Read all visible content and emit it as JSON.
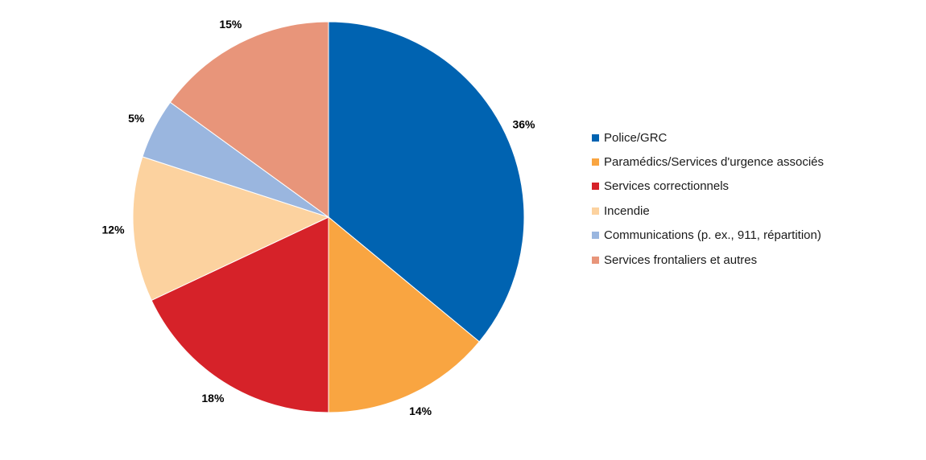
{
  "chart_data": {
    "type": "pie",
    "title": "",
    "categories": [
      "Police/GRC",
      "Paramédics/Services d'urgence associés",
      "Services correctionnels",
      "Incendie",
      "Communications (p. ex., 911, répartition)",
      "Services frontaliers et autres"
    ],
    "values": [
      36,
      14,
      18,
      12,
      5,
      15
    ],
    "labels": [
      "36%",
      "14%",
      "18%",
      "12%",
      "5%",
      "15%"
    ],
    "colors": [
      "#0063B1",
      "#F9A541",
      "#D62229",
      "#FCD29F",
      "#9AB6DF",
      "#E8957A"
    ],
    "start_angle": "12 o'clock",
    "direction": "clockwise",
    "legend_position": "right"
  }
}
